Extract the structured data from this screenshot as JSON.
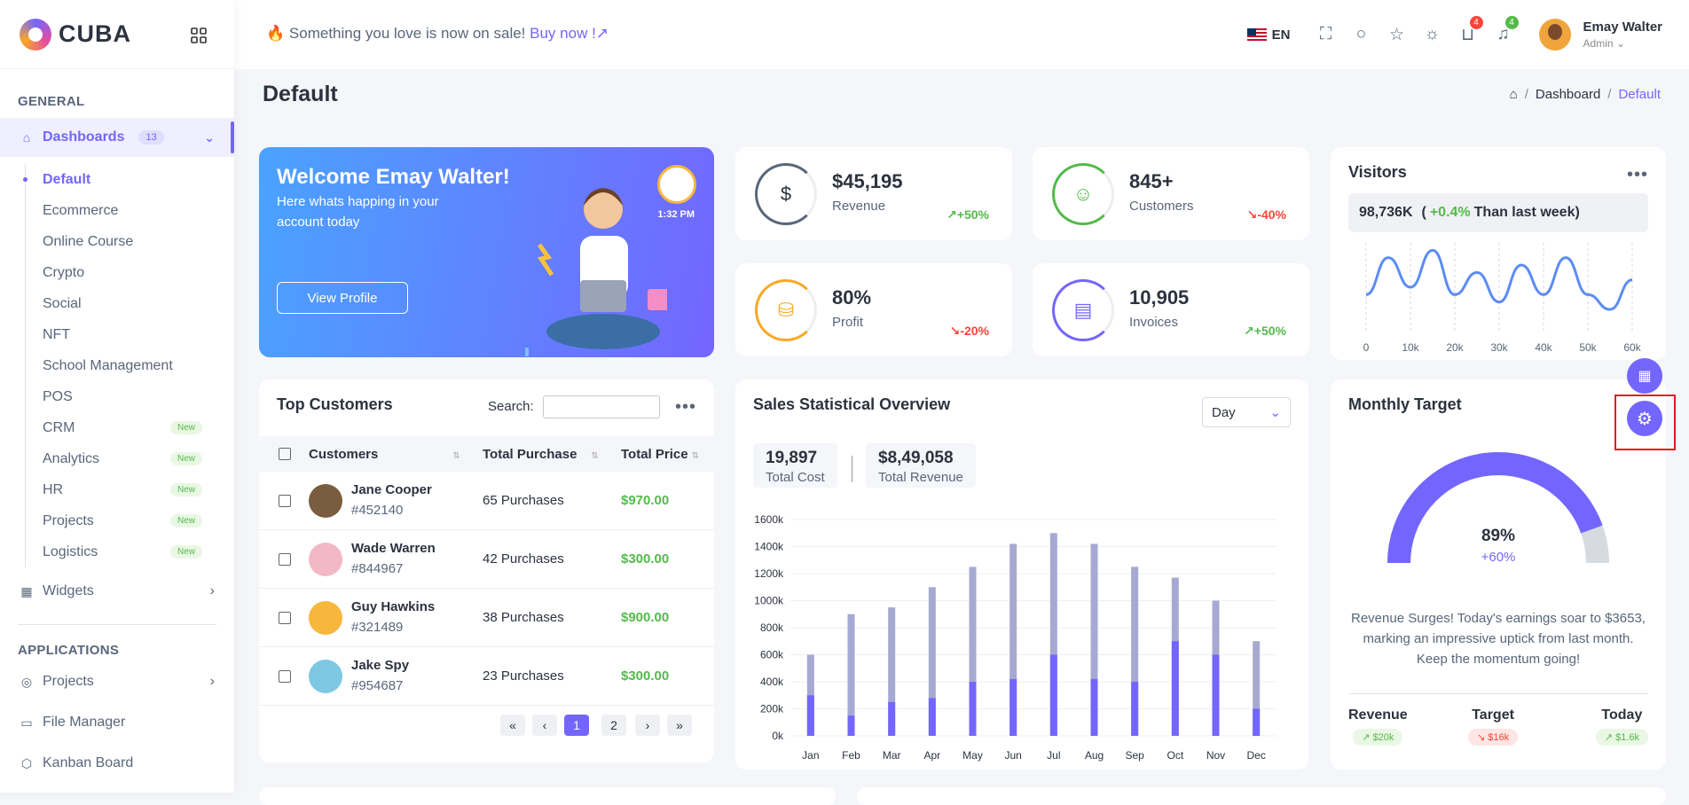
{
  "brand": {
    "name": "CUBA"
  },
  "sidebar": {
    "general_title": "GENERAL",
    "dashboards_label": "Dashboards",
    "dashboards_badge": "13",
    "sub_items": [
      {
        "label": "Default",
        "badge": ""
      },
      {
        "label": "Ecommerce",
        "badge": ""
      },
      {
        "label": "Online Course",
        "badge": ""
      },
      {
        "label": "Crypto",
        "badge": ""
      },
      {
        "label": "Social",
        "badge": ""
      },
      {
        "label": "NFT",
        "badge": ""
      },
      {
        "label": "School Management",
        "badge": ""
      },
      {
        "label": "POS",
        "badge": ""
      },
      {
        "label": "CRM",
        "badge": "New"
      },
      {
        "label": "Analytics",
        "badge": "New"
      },
      {
        "label": "HR",
        "badge": "New"
      },
      {
        "label": "Projects",
        "badge": "New"
      },
      {
        "label": "Logistics",
        "badge": "New"
      }
    ],
    "widgets_label": "Widgets",
    "applications_title": "APPLICATIONS",
    "app_items": [
      "Projects",
      "File Manager",
      "Kanban Board"
    ]
  },
  "topbar": {
    "promo_text": "Something you love is now on sale!",
    "promo_link": "Buy now !",
    "language": "EN",
    "cart_count": "4",
    "notification_count": "4",
    "user_name": "Emay Walter",
    "user_role": "Admin"
  },
  "page": {
    "title": "Default",
    "breadcrumb": [
      "Dashboard",
      "Default"
    ]
  },
  "welcome": {
    "title": "Welcome Emay Walter!",
    "subtitle": "Here whats happing in your account today",
    "button": "View Profile",
    "time": "1:32 PM"
  },
  "stats": [
    {
      "value": "$45,195",
      "label": "Revenue",
      "change": "+50%",
      "dir": "up",
      "color": "#59667a"
    },
    {
      "value": "845+",
      "label": "Customers",
      "change": "-40%",
      "dir": "down",
      "color": "#54ba4a"
    },
    {
      "value": "80%",
      "label": "Profit",
      "change": "-20%",
      "dir": "down",
      "color": "#f9a826"
    },
    {
      "value": "10,905",
      "label": "Invoices",
      "change": "+50%",
      "dir": "up",
      "color": "#7366ff"
    }
  ],
  "visitors": {
    "title": "Visitors",
    "count": "98,736K",
    "change": "+0.4%",
    "suffix": "Than last week"
  },
  "top_customers": {
    "title": "Top Customers",
    "search_label": "Search:",
    "columns": [
      "Customers",
      "Total Purchase",
      "Total Price"
    ],
    "rows": [
      {
        "name": "Jane Cooper",
        "id": "#452140",
        "purchase": "65 Purchases",
        "price": "$970.00",
        "avatar": "#7a5c3e"
      },
      {
        "name": "Wade Warren",
        "id": "#844967",
        "purchase": "42 Purchases",
        "price": "$300.00",
        "avatar": "#f2b8c6"
      },
      {
        "name": "Guy Hawkins",
        "id": "#321489",
        "purchase": "38 Purchases",
        "price": "$900.00",
        "avatar": "#f6b73c"
      },
      {
        "name": "Jake Spy",
        "id": "#954687",
        "purchase": "23 Purchases",
        "price": "$300.00",
        "avatar": "#7ec8e3"
      }
    ],
    "pagination": [
      "«",
      "‹",
      "1",
      "2",
      "›",
      "»"
    ]
  },
  "sales": {
    "title": "Sales Statistical Overview",
    "period": "Day",
    "total_cost": "19,897",
    "total_cost_label": "Total Cost",
    "total_revenue": "$8,49,058",
    "total_revenue_label": "Total Revenue"
  },
  "monthly_target": {
    "title": "Monthly Target",
    "percent": "89%",
    "change": "+60%",
    "description": "Revenue Surges! Today's earnings soar to $3653, marking an impressive uptick from last month. Keep the momentum going!",
    "footer": [
      {
        "label": "Revenue",
        "value": "$20k",
        "dir": "up"
      },
      {
        "label": "Target",
        "value": "$16k",
        "dir": "down"
      },
      {
        "label": "Today",
        "value": "$1.6k",
        "dir": "up"
      }
    ],
    "progress": 0.89
  },
  "chart_data": [
    {
      "type": "line",
      "x_ticks": [
        "0",
        "10k",
        "20k",
        "30k",
        "40k",
        "50k",
        "60k"
      ],
      "x": [
        0,
        5,
        10,
        15,
        20,
        25,
        30,
        35,
        40,
        45,
        50,
        55,
        60
      ],
      "values": [
        5,
        10,
        6,
        11,
        5,
        8,
        4,
        9,
        5,
        10,
        5,
        3,
        7
      ],
      "xlabel": "",
      "ylabel": "",
      "grid": true
    },
    {
      "type": "bar",
      "categories": [
        "Jan",
        "Feb",
        "Mar",
        "Apr",
        "May",
        "Jun",
        "Jul",
        "Aug",
        "Sep",
        "Oct",
        "Nov",
        "Dec"
      ],
      "series": [
        {
          "values": [
            300,
            150,
            250,
            280,
            400,
            420,
            600,
            420,
            400,
            700,
            600,
            200
          ],
          "color": "#7366ff"
        },
        {
          "values": [
            600,
            900,
            950,
            1100,
            1250,
            1420,
            1500,
            1420,
            1250,
            1170,
            1000,
            700
          ],
          "color": "#a6a9d1"
        }
      ],
      "y_ticks": [
        "0k",
        "200k",
        "400k",
        "600k",
        "800k",
        "1000k",
        "1200k",
        "1400k",
        "1600k"
      ],
      "ylim": [
        0,
        1600
      ],
      "xlabel": "",
      "ylabel": "",
      "grid": true
    }
  ]
}
